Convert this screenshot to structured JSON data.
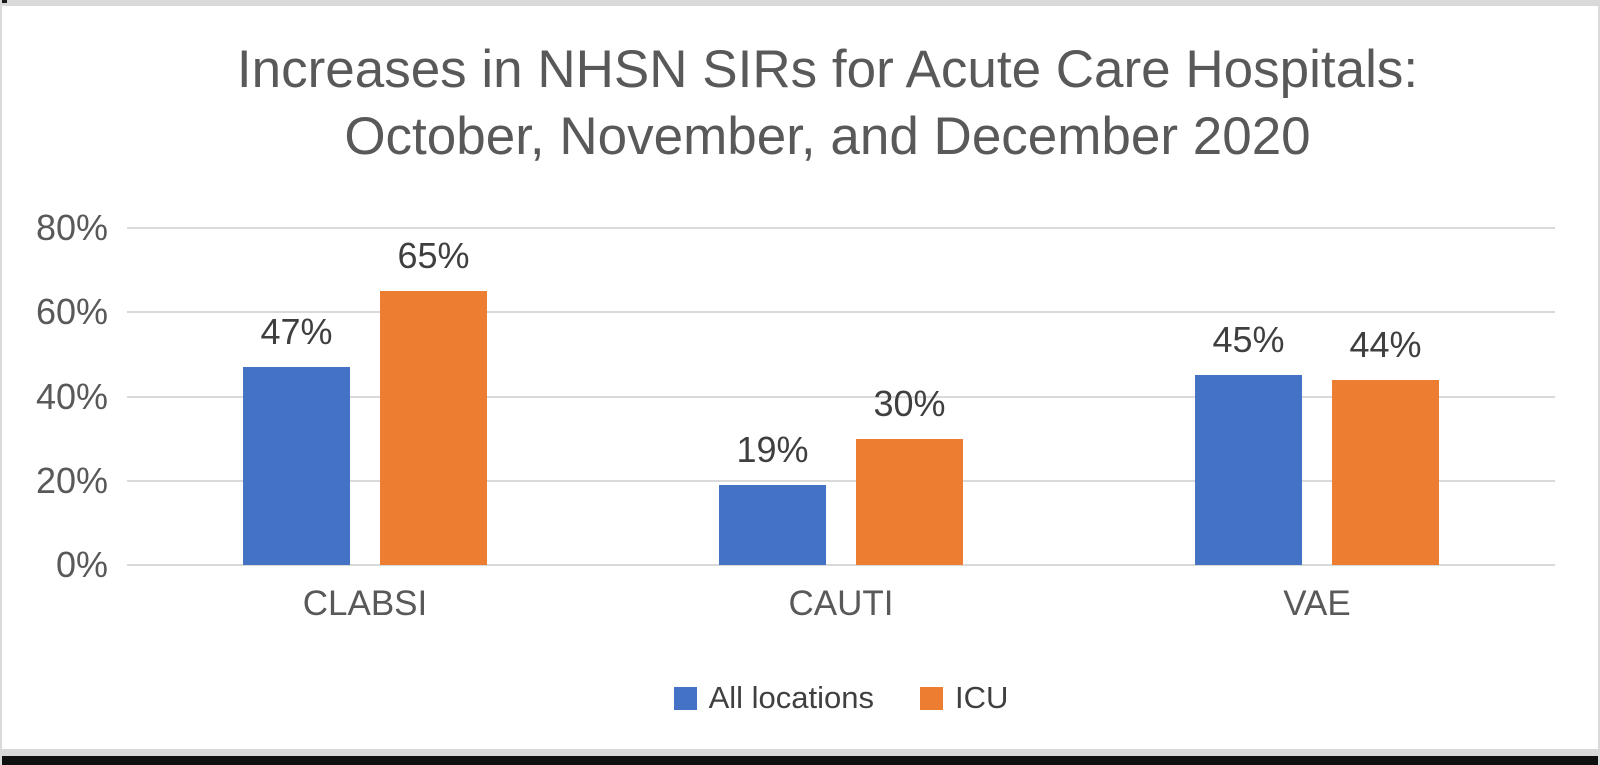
{
  "page": {
    "background": "#ffffff",
    "top_strip_color": "#d9d9d9",
    "edge_line_color": "#dadada",
    "bottom_strip_color": "#d9d9d9",
    "bottom_bar_color": "#101010"
  },
  "chart_data": {
    "type": "bar",
    "title": "Increases in NHSN SIRs for Acute Care Hospitals: October, November, and December 2020",
    "title_lines": [
      "Increases in NHSN SIRs for Acute Care Hospitals:",
      "October, November, and December 2020"
    ],
    "categories": [
      "CLABSI",
      "CAUTI",
      "VAE"
    ],
    "series": [
      {
        "name": "All locations",
        "color": "#4472C4",
        "values": [
          47,
          19,
          45
        ],
        "labels": [
          "47%",
          "19%",
          "45%"
        ]
      },
      {
        "name": "ICU",
        "color": "#ED7D31",
        "values": [
          65,
          30,
          44
        ],
        "labels": [
          "65%",
          "30%",
          "44%"
        ]
      }
    ],
    "xlabel": "",
    "ylabel": "",
    "ylim": [
      0,
      80
    ],
    "yticks": [
      {
        "value": 0,
        "label": "0%"
      },
      {
        "value": 20,
        "label": "20%"
      },
      {
        "value": 40,
        "label": "40%"
      },
      {
        "value": 60,
        "label": "60%"
      },
      {
        "value": 80,
        "label": "80%"
      }
    ],
    "grid": true,
    "legend_position": "bottom",
    "colors": {
      "title": "#595959",
      "axis_labels": "#595959",
      "category_labels": "#595959",
      "data_labels": "#3f3f3f",
      "legend_text": "#404040",
      "gridline": "#d9d9d9"
    }
  }
}
